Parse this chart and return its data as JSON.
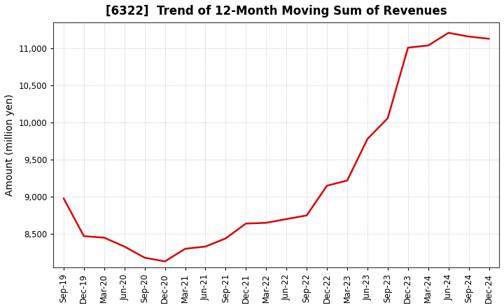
{
  "title": "[6322]  Trend of 12-Month Moving Sum of Revenues",
  "ylabel": "Amount (million yen)",
  "line_color": "#DD0000",
  "background_color": "#FFFFFF",
  "plot_bg_color": "#FFFFFF",
  "grid_color": "#999999",
  "x_labels": [
    "Sep-19",
    "Dec-19",
    "Mar-20",
    "Jun-20",
    "Sep-20",
    "Dec-20",
    "Mar-21",
    "Jun-21",
    "Sep-21",
    "Dec-21",
    "Mar-22",
    "Jun-22",
    "Sep-22",
    "Dec-22",
    "Mar-23",
    "Jun-23",
    "Sep-23",
    "Dec-23",
    "Mar-24",
    "Jun-24",
    "Sep-24",
    "Dec-24"
  ],
  "values": [
    8980,
    8470,
    8450,
    8330,
    8180,
    8130,
    8300,
    8330,
    8440,
    8640,
    8650,
    8700,
    8750,
    9150,
    9220,
    9780,
    10060,
    11010,
    11040,
    11210,
    11160,
    11130
  ],
  "ylim": [
    8050,
    11350
  ],
  "yticks": [
    8500,
    9000,
    9500,
    10000,
    10500,
    11000
  ],
  "title_fontsize": 12,
  "label_fontsize": 10,
  "tick_fontsize": 8.5
}
